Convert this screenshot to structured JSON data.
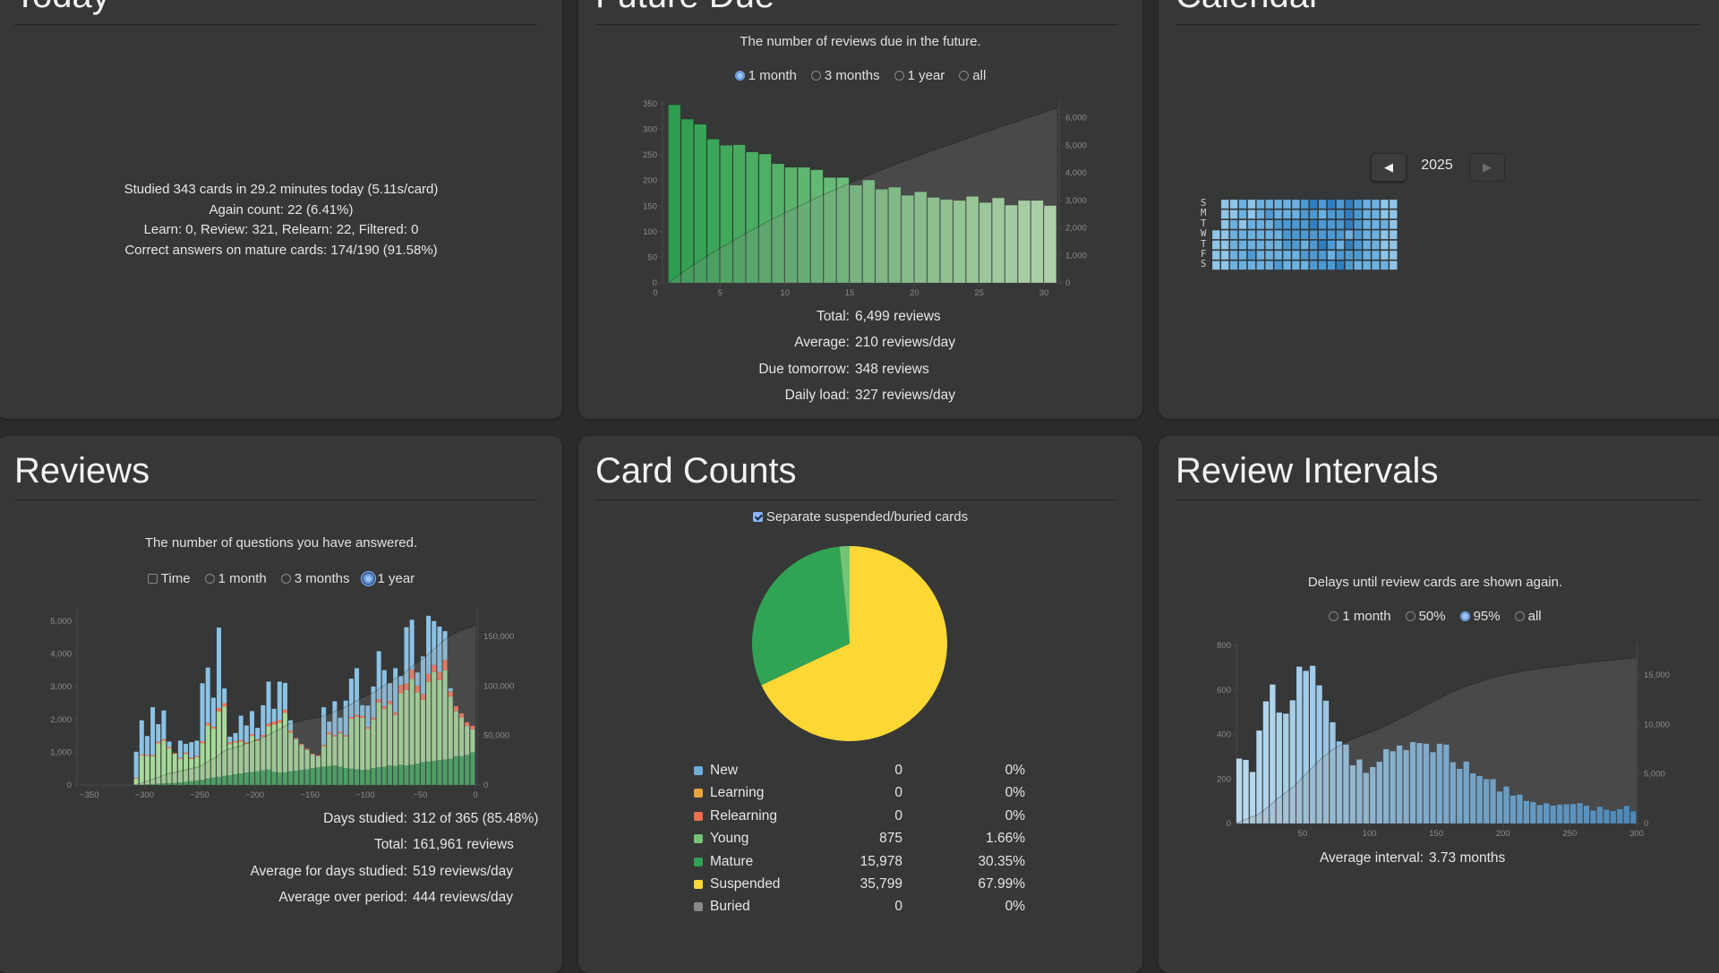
{
  "today": {
    "title": "Today",
    "lines": [
      "Studied 343 cards in 29.2 minutes today (5.11s/card)",
      "Again count: 22 (6.41%)",
      "Learn: 0, Review: 321, Relearn: 22, Filtered: 0",
      "Correct answers on mature cards: 174/190 (91.58%)"
    ]
  },
  "future_due": {
    "title": "Future Due",
    "subtitle": "The number of reviews due in the future.",
    "options": [
      {
        "label": "1 month",
        "checked": true
      },
      {
        "label": "3 months",
        "checked": false
      },
      {
        "label": "1 year",
        "checked": false
      },
      {
        "label": "all",
        "checked": false
      }
    ],
    "stats": [
      {
        "label": "Total:",
        "value": "6,499 reviews"
      },
      {
        "label": "Average:",
        "value": "210 reviews/day"
      },
      {
        "label": "Due tomorrow:",
        "value": "348 reviews"
      },
      {
        "label": "Daily load:",
        "value": "327 reviews/day"
      }
    ]
  },
  "calendar": {
    "title": "Calendar",
    "year": "2025",
    "prev_icon": "triangle-left-icon",
    "next_icon": "triangle-right-icon",
    "day_labels": [
      "S",
      "M",
      "T",
      "W",
      "T",
      "F",
      "S"
    ],
    "levels": [
      "011212222234343432211",
      "011212322233233432211",
      "012122233334333432221",
      "112222223333333232211",
      "112222223323432432211",
      "112232222233323332211",
      "112222232223334322221"
    ],
    "level_colors": [
      "#8ec5e8",
      "#6cb0df",
      "#4d9ad3",
      "#2f7fc0"
    ]
  },
  "reviews": {
    "title": "Reviews",
    "subtitle": "The number of questions you have answered.",
    "time_label": "Time",
    "time_checked": false,
    "options": [
      {
        "label": "1 month",
        "checked": false
      },
      {
        "label": "3 months",
        "checked": false
      },
      {
        "label": "1 year",
        "checked": true
      }
    ],
    "stats": [
      {
        "label": "Days studied:",
        "value": "312 of 365 (85.48%)"
      },
      {
        "label": "Total:",
        "value": "161,961 reviews"
      },
      {
        "label": "Average for days studied:",
        "value": "519 reviews/day"
      },
      {
        "label": "Average over period:",
        "value": "444 reviews/day"
      }
    ]
  },
  "card_counts": {
    "title": "Card Counts",
    "checkbox_label": "Separate suspended/buried cards",
    "checked": true,
    "rows": [
      {
        "name": "New",
        "count": "0",
        "percent": "0%",
        "color": "#6baed6"
      },
      {
        "name": "Learning",
        "count": "0",
        "percent": "0%",
        "color": "#e8a33d"
      },
      {
        "name": "Relearning",
        "count": "0",
        "percent": "0%",
        "color": "#ef6c4c"
      },
      {
        "name": "Young",
        "count": "875",
        "percent": "1.66%",
        "color": "#74c476"
      },
      {
        "name": "Mature",
        "count": "15,978",
        "percent": "30.35%",
        "color": "#31a354"
      },
      {
        "name": "Suspended",
        "count": "35,799",
        "percent": "67.99%",
        "color": "#fdd835"
      },
      {
        "name": "Buried",
        "count": "0",
        "percent": "0%",
        "color": "#888888"
      }
    ]
  },
  "review_intervals": {
    "title": "Review Intervals",
    "subtitle": "Delays until review cards are shown again.",
    "options": [
      {
        "label": "1 month",
        "checked": false
      },
      {
        "label": "50%",
        "checked": false
      },
      {
        "label": "95%",
        "checked": true
      },
      {
        "label": "all",
        "checked": false
      }
    ],
    "stats": [
      {
        "label": "Average interval:",
        "value": "3.73 months"
      }
    ]
  },
  "chart_data": [
    {
      "id": "future_due",
      "type": "bar",
      "x": [
        1,
        2,
        3,
        4,
        5,
        6,
        7,
        8,
        9,
        10,
        11,
        12,
        13,
        14,
        15,
        16,
        17,
        18,
        19,
        20,
        21,
        22,
        23,
        24,
        25,
        26,
        27,
        28,
        29,
        30
      ],
      "values": [
        348,
        320,
        310,
        281,
        269,
        270,
        256,
        252,
        233,
        226,
        226,
        221,
        206,
        206,
        191,
        201,
        183,
        187,
        171,
        178,
        167,
        163,
        161,
        169,
        157,
        166,
        152,
        161,
        161,
        151
      ],
      "xlim": [
        0,
        31
      ],
      "ylim": [
        0,
        350
      ],
      "x_ticks": [
        0,
        5,
        10,
        15,
        20,
        25,
        30
      ],
      "y_ticks": [
        0,
        50,
        100,
        150,
        200,
        250,
        300,
        350
      ],
      "y2_ticks": [
        0,
        1000,
        2000,
        3000,
        4000,
        5000,
        6000
      ],
      "cumulative_overlay": true,
      "colors": [
        "#2f9e4f",
        "#b8e3b0"
      ]
    },
    {
      "id": "reviews",
      "type": "bar",
      "stacked": true,
      "bin_days": 5,
      "x_start": -310,
      "xlim": [
        -350,
        0
      ],
      "ylim": [
        0,
        5000
      ],
      "x_ticks": [
        -350,
        -300,
        -250,
        -200,
        -150,
        -100,
        -50,
        0
      ],
      "y_ticks": [
        0,
        1000,
        2000,
        3000,
        4000,
        5000
      ],
      "y2_ticks": [
        0,
        50000,
        100000,
        150000
      ],
      "cumulative_overlay": true,
      "series": [
        {
          "key": "mature",
          "color": "#3da35a",
          "values": [
            0,
            10,
            20,
            30,
            40,
            50,
            60,
            70,
            80,
            100,
            120,
            140,
            160,
            200,
            230,
            250,
            280,
            300,
            330,
            350,
            380,
            400,
            420,
            450,
            470,
            400,
            380,
            390,
            420,
            440,
            460,
            480,
            520,
            540,
            560,
            580,
            600,
            560,
            520,
            500,
            480,
            460,
            470,
            520,
            540,
            560,
            600,
            580,
            620,
            600,
            620,
            650,
            700,
            720,
            740,
            760,
            780,
            800,
            880,
            880,
            920,
            1000
          ]
        },
        {
          "key": "young",
          "color": "#a6d99a",
          "values": [
            200,
            890,
            870,
            850,
            1230,
            1300,
            1060,
            880,
            720,
            850,
            680,
            710,
            1120,
            1620,
            1490,
            2000,
            2120,
            950,
            970,
            980,
            880,
            1100,
            930,
            1030,
            1330,
            1450,
            1520,
            1810,
            1180,
            960,
            760,
            590,
            410,
            340,
            620,
            970,
            880,
            1020,
            960,
            1520,
            1600,
            1590,
            1250,
            1480,
            1980,
            1770,
            1880,
            1560,
            2180,
            2300,
            2620,
            2180,
            1900,
            2430,
            2710,
            2440,
            2720,
            1900,
            1370,
            1180,
            880,
            700
          ]
        },
        {
          "key": "relearn",
          "color": "#f4775a",
          "values": [
            20,
            30,
            30,
            30,
            50,
            50,
            40,
            30,
            30,
            40,
            40,
            30,
            60,
            70,
            60,
            100,
            100,
            50,
            40,
            40,
            40,
            50,
            40,
            50,
            80,
            90,
            80,
            100,
            60,
            40,
            40,
            40,
            30,
            30,
            40,
            60,
            50,
            50,
            40,
            60,
            60,
            60,
            50,
            60,
            100,
            80,
            90,
            80,
            250,
            200,
            280,
            200,
            180,
            250,
            220,
            250,
            320,
            160,
            160,
            130,
            120,
            110
          ]
        },
        {
          "key": "learn",
          "color": "#8cc2e3",
          "values": [
            800,
            1050,
            580,
            1470,
            540,
            880,
            170,
            0,
            530,
            270,
            470,
            480,
            1770,
            1700,
            890,
            2460,
            450,
            180,
            250,
            750,
            520,
            710,
            360,
            910,
            1280,
            390,
            1180,
            820,
            320,
            0,
            0,
            0,
            0,
            0,
            1160,
            330,
            1030,
            430,
            1060,
            1170,
            1430,
            330,
            660,
            950,
            1470,
            1100,
            540,
            1350,
            280,
            1720,
            1530,
            410,
            1150,
            1770,
            1340,
            1390,
            880,
            100,
            0,
            0,
            0,
            0
          ]
        }
      ]
    },
    {
      "id": "review_intervals",
      "type": "bar",
      "bin_days": 5,
      "xlim": [
        0,
        300
      ],
      "ylim": [
        0,
        800
      ],
      "x_ticks": [
        50,
        100,
        150,
        200,
        250,
        300
      ],
      "y_ticks": [
        0,
        200,
        400,
        600,
        800
      ],
      "y2_ticks": [
        0,
        5000,
        10000,
        15000
      ],
      "cumulative_overlay": true,
      "values": [
        292,
        286,
        232,
        418,
        549,
        625,
        499,
        494,
        554,
        705,
        686,
        709,
        621,
        552,
        455,
        369,
        355,
        262,
        288,
        228,
        254,
        278,
        334,
        325,
        351,
        331,
        366,
        362,
        359,
        321,
        359,
        355,
        276,
        246,
        279,
        226,
        214,
        200,
        200,
        144,
        167,
        126,
        130,
        102,
        97,
        83,
        92,
        81,
        85,
        87,
        88,
        92,
        81,
        59,
        76,
        63,
        57,
        65,
        80,
        55
      ],
      "colors": [
        "#b9daee",
        "#3b88c6"
      ]
    },
    {
      "id": "card_counts",
      "type": "pie",
      "labels": [
        "Suspended",
        "Mature",
        "Young"
      ],
      "values": [
        35799,
        15978,
        875
      ],
      "colors": [
        "#fdd835",
        "#31a354",
        "#74c476"
      ]
    }
  ]
}
